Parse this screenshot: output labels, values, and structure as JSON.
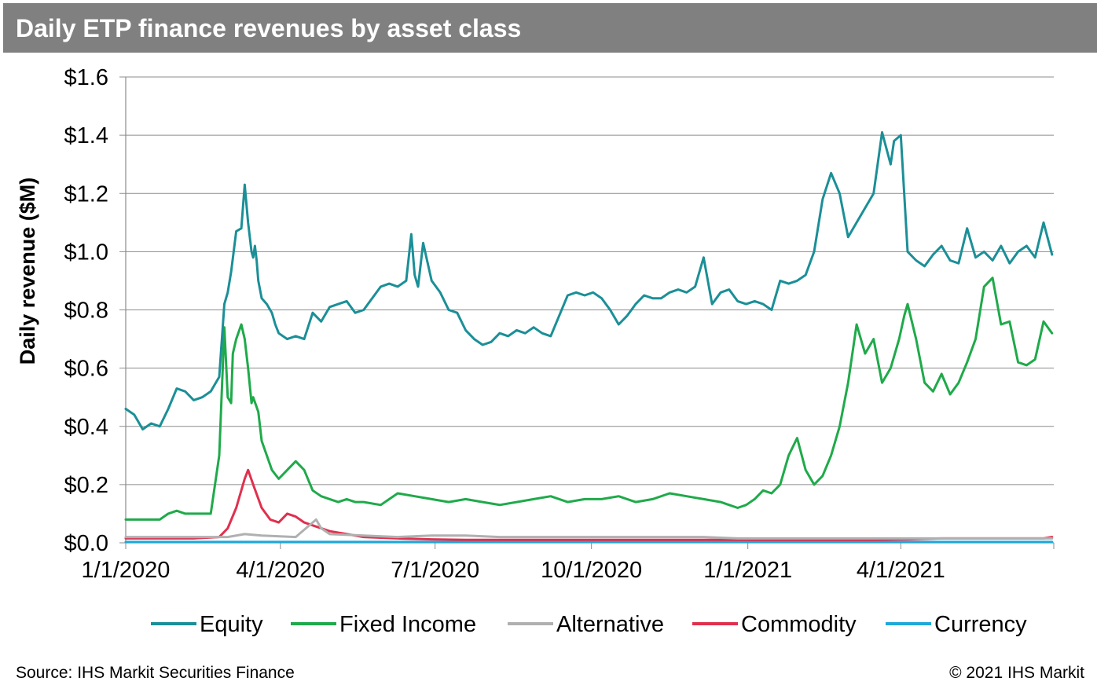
{
  "header": {
    "title": "Daily ETP finance revenues by asset class"
  },
  "footer": {
    "source": "Source: IHS Markit Securities Finance",
    "copyright": "© 2021 IHS Markit"
  },
  "chart_data": {
    "type": "line",
    "title": "Daily ETP finance revenues by asset class",
    "xlabel": "",
    "ylabel": "Daily revenue ($M)",
    "x_range": [
      "1/1/2020",
      "6/30/2021"
    ],
    "x_days_range": [
      0,
      546
    ],
    "ylim": [
      0,
      1.6
    ],
    "y_ticks": [
      0,
      0.2,
      0.4,
      0.6,
      0.8,
      1.0,
      1.2,
      1.4,
      1.6
    ],
    "y_tick_labels": [
      "$0.0",
      "$0.2",
      "$0.4",
      "$0.6",
      "$0.8",
      "$1.0",
      "$1.2",
      "$1.4",
      "$1.6"
    ],
    "x_ticks": [
      0,
      91,
      182,
      274,
      366,
      456
    ],
    "x_tick_labels": [
      "1/1/2020",
      "4/1/2020",
      "7/1/2020",
      "10/1/2020",
      "1/1/2021",
      "4/1/2021"
    ],
    "grid": "horizontal",
    "legend_position": "bottom",
    "series": [
      {
        "name": "Equity",
        "color": "#1b8f97",
        "x": [
          0,
          5,
          10,
          15,
          20,
          25,
          30,
          35,
          40,
          45,
          50,
          55,
          58,
          60,
          62,
          65,
          68,
          70,
          72,
          74,
          75,
          76,
          77,
          78,
          80,
          83,
          86,
          88,
          90,
          95,
          100,
          105,
          110,
          115,
          120,
          125,
          130,
          135,
          140,
          145,
          150,
          155,
          160,
          165,
          168,
          170,
          172,
          175,
          180,
          185,
          190,
          195,
          200,
          205,
          210,
          215,
          220,
          225,
          230,
          235,
          240,
          245,
          250,
          255,
          260,
          265,
          270,
          275,
          280,
          285,
          290,
          295,
          300,
          305,
          310,
          315,
          320,
          325,
          330,
          335,
          340,
          345,
          350,
          355,
          360,
          365,
          370,
          375,
          380,
          385,
          390,
          395,
          400,
          405,
          410,
          415,
          420,
          425,
          430,
          435,
          440,
          445,
          450,
          452,
          454,
          456,
          460,
          465,
          470,
          475,
          480,
          485,
          490,
          495,
          500,
          505,
          510,
          515,
          520,
          525,
          530,
          535,
          540,
          545
        ],
        "values": [
          0.46,
          0.44,
          0.39,
          0.41,
          0.4,
          0.46,
          0.53,
          0.52,
          0.49,
          0.5,
          0.52,
          0.57,
          0.82,
          0.86,
          0.93,
          1.07,
          1.08,
          1.23,
          1.1,
          1.0,
          0.98,
          1.02,
          0.97,
          0.9,
          0.84,
          0.82,
          0.79,
          0.75,
          0.72,
          0.7,
          0.71,
          0.7,
          0.79,
          0.76,
          0.81,
          0.82,
          0.83,
          0.79,
          0.8,
          0.84,
          0.88,
          0.89,
          0.88,
          0.9,
          1.06,
          0.92,
          0.88,
          1.03,
          0.9,
          0.86,
          0.8,
          0.79,
          0.73,
          0.7,
          0.68,
          0.69,
          0.72,
          0.71,
          0.73,
          0.72,
          0.74,
          0.72,
          0.71,
          0.78,
          0.85,
          0.86,
          0.85,
          0.86,
          0.84,
          0.8,
          0.75,
          0.78,
          0.82,
          0.85,
          0.84,
          0.84,
          0.86,
          0.87,
          0.86,
          0.88,
          0.98,
          0.82,
          0.86,
          0.87,
          0.83,
          0.82,
          0.83,
          0.82,
          0.8,
          0.9,
          0.89,
          0.9,
          0.92,
          1.0,
          1.18,
          1.27,
          1.2,
          1.05,
          1.1,
          1.15,
          1.2,
          1.41,
          1.3,
          1.38,
          1.39,
          1.4,
          1.0,
          0.97,
          0.95,
          0.99,
          1.02,
          0.97,
          0.96,
          1.08,
          0.98,
          1.0,
          0.97,
          1.02,
          0.96,
          1.0,
          1.02,
          0.98,
          1.1,
          0.99
        ]
      },
      {
        "name": "Fixed Income",
        "color": "#1faa4a",
        "x": [
          0,
          10,
          20,
          25,
          30,
          35,
          40,
          45,
          50,
          55,
          58,
          60,
          62,
          63,
          65,
          68,
          70,
          72,
          74,
          75,
          78,
          80,
          83,
          86,
          90,
          95,
          100,
          105,
          110,
          115,
          120,
          125,
          130,
          135,
          140,
          150,
          160,
          170,
          180,
          190,
          200,
          210,
          220,
          230,
          240,
          250,
          260,
          270,
          280,
          290,
          300,
          310,
          320,
          330,
          340,
          350,
          355,
          360,
          365,
          370,
          375,
          380,
          385,
          390,
          395,
          400,
          405,
          410,
          415,
          420,
          425,
          430,
          435,
          440,
          445,
          450,
          455,
          458,
          460,
          465,
          470,
          475,
          480,
          485,
          490,
          495,
          500,
          505,
          510,
          515,
          520,
          525,
          530,
          535,
          540,
          545
        ],
        "values": [
          0.08,
          0.08,
          0.08,
          0.1,
          0.11,
          0.1,
          0.1,
          0.1,
          0.1,
          0.3,
          0.74,
          0.5,
          0.48,
          0.65,
          0.7,
          0.75,
          0.7,
          0.6,
          0.48,
          0.5,
          0.45,
          0.35,
          0.3,
          0.25,
          0.22,
          0.25,
          0.28,
          0.25,
          0.18,
          0.16,
          0.15,
          0.14,
          0.15,
          0.14,
          0.14,
          0.13,
          0.17,
          0.16,
          0.15,
          0.14,
          0.15,
          0.14,
          0.13,
          0.14,
          0.15,
          0.16,
          0.14,
          0.15,
          0.15,
          0.16,
          0.14,
          0.15,
          0.17,
          0.16,
          0.15,
          0.14,
          0.13,
          0.12,
          0.13,
          0.15,
          0.18,
          0.17,
          0.2,
          0.3,
          0.36,
          0.25,
          0.2,
          0.23,
          0.3,
          0.4,
          0.55,
          0.75,
          0.65,
          0.7,
          0.55,
          0.6,
          0.7,
          0.78,
          0.82,
          0.7,
          0.55,
          0.52,
          0.58,
          0.51,
          0.55,
          0.62,
          0.7,
          0.88,
          0.91,
          0.75,
          0.76,
          0.62,
          0.61,
          0.63,
          0.76,
          0.72
        ]
      },
      {
        "name": "Alternative",
        "color": "#b0b0b0",
        "x": [
          0,
          20,
          40,
          60,
          70,
          80,
          100,
          112,
          115,
          120,
          140,
          160,
          180,
          200,
          220,
          240,
          260,
          280,
          300,
          320,
          340,
          360,
          380,
          400,
          420,
          440,
          460,
          480,
          500,
          520,
          540,
          545
        ],
        "values": [
          0.02,
          0.02,
          0.02,
          0.02,
          0.03,
          0.025,
          0.02,
          0.08,
          0.05,
          0.03,
          0.025,
          0.02,
          0.025,
          0.025,
          0.02,
          0.02,
          0.02,
          0.02,
          0.02,
          0.02,
          0.02,
          0.015,
          0.015,
          0.015,
          0.015,
          0.015,
          0.015,
          0.015,
          0.015,
          0.015,
          0.015,
          0.015
        ]
      },
      {
        "name": "Commodity",
        "color": "#e0304e",
        "x": [
          0,
          20,
          40,
          55,
          60,
          65,
          70,
          72,
          75,
          80,
          85,
          90,
          95,
          100,
          105,
          110,
          120,
          130,
          140,
          160,
          180,
          200,
          220,
          240,
          260,
          280,
          300,
          320,
          340,
          360,
          380,
          400,
          420,
          440,
          460,
          480,
          500,
          520,
          540,
          545
        ],
        "values": [
          0.015,
          0.015,
          0.015,
          0.02,
          0.05,
          0.12,
          0.22,
          0.25,
          0.2,
          0.12,
          0.08,
          0.07,
          0.1,
          0.09,
          0.07,
          0.06,
          0.04,
          0.03,
          0.02,
          0.015,
          0.012,
          0.01,
          0.01,
          0.01,
          0.01,
          0.01,
          0.01,
          0.01,
          0.01,
          0.01,
          0.01,
          0.01,
          0.01,
          0.01,
          0.012,
          0.015,
          0.015,
          0.015,
          0.015,
          0.02
        ]
      },
      {
        "name": "Currency",
        "color": "#1fa8d9",
        "x": [
          0,
          100,
          200,
          300,
          400,
          500,
          545
        ],
        "values": [
          0.003,
          0.003,
          0.003,
          0.003,
          0.003,
          0.003,
          0.003
        ]
      }
    ]
  }
}
